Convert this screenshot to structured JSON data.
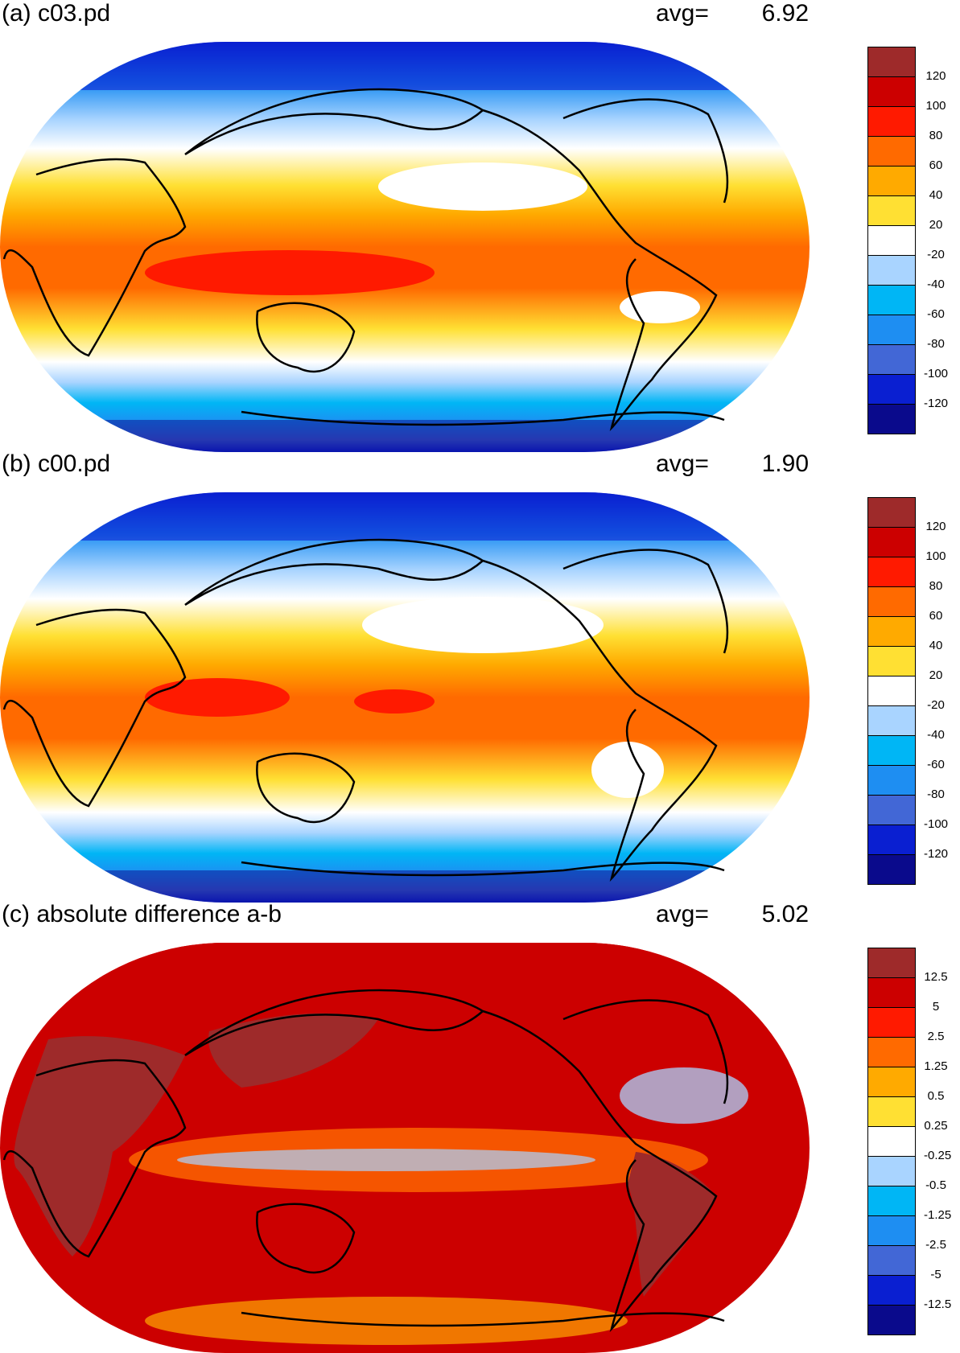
{
  "panels": [
    {
      "id": "a",
      "title": "(a) c03.pd",
      "avg_label": "avg=",
      "avg_value": "6.92",
      "colorbar": {
        "labels": [
          "120",
          "100",
          "80",
          "60",
          "40",
          "20",
          "-20",
          "-40",
          "-60",
          "-80",
          "-100",
          "-120"
        ],
        "colors": [
          "#9e2a2a",
          "#cc0000",
          "#ff1a00",
          "#ff6a00",
          "#ffaa00",
          "#ffe033",
          "#ffffff",
          "#a9d4ff",
          "#00b6f5",
          "#1e8ef2",
          "#4267d6",
          "#0a1fd1",
          "#0a0a8c"
        ]
      }
    },
    {
      "id": "b",
      "title": "(b) c00.pd",
      "avg_label": "avg=",
      "avg_value": "1.90",
      "colorbar": {
        "labels": [
          "120",
          "100",
          "80",
          "60",
          "40",
          "20",
          "-20",
          "-40",
          "-60",
          "-80",
          "-100",
          "-120"
        ],
        "colors": [
          "#9e2a2a",
          "#cc0000",
          "#ff1a00",
          "#ff6a00",
          "#ffaa00",
          "#ffe033",
          "#ffffff",
          "#a9d4ff",
          "#00b6f5",
          "#1e8ef2",
          "#4267d6",
          "#0a1fd1",
          "#0a0a8c"
        ]
      }
    },
    {
      "id": "c",
      "title": "(c) absolute difference a-b",
      "avg_label": "avg=",
      "avg_value": "5.02",
      "colorbar": {
        "labels": [
          "12.5",
          "5",
          "2.5",
          "1.25",
          "0.5",
          "0.25",
          "-0.25",
          "-0.5",
          "-1.25",
          "-2.5",
          "-5",
          "-12.5"
        ],
        "colors": [
          "#9e2a2a",
          "#cc0000",
          "#ff1a00",
          "#ff6a00",
          "#ffaa00",
          "#ffe033",
          "#ffffff",
          "#a9d4ff",
          "#00b6f5",
          "#1e8ef2",
          "#4267d6",
          "#0a1fd1",
          "#0a0a8c"
        ]
      }
    }
  ]
}
